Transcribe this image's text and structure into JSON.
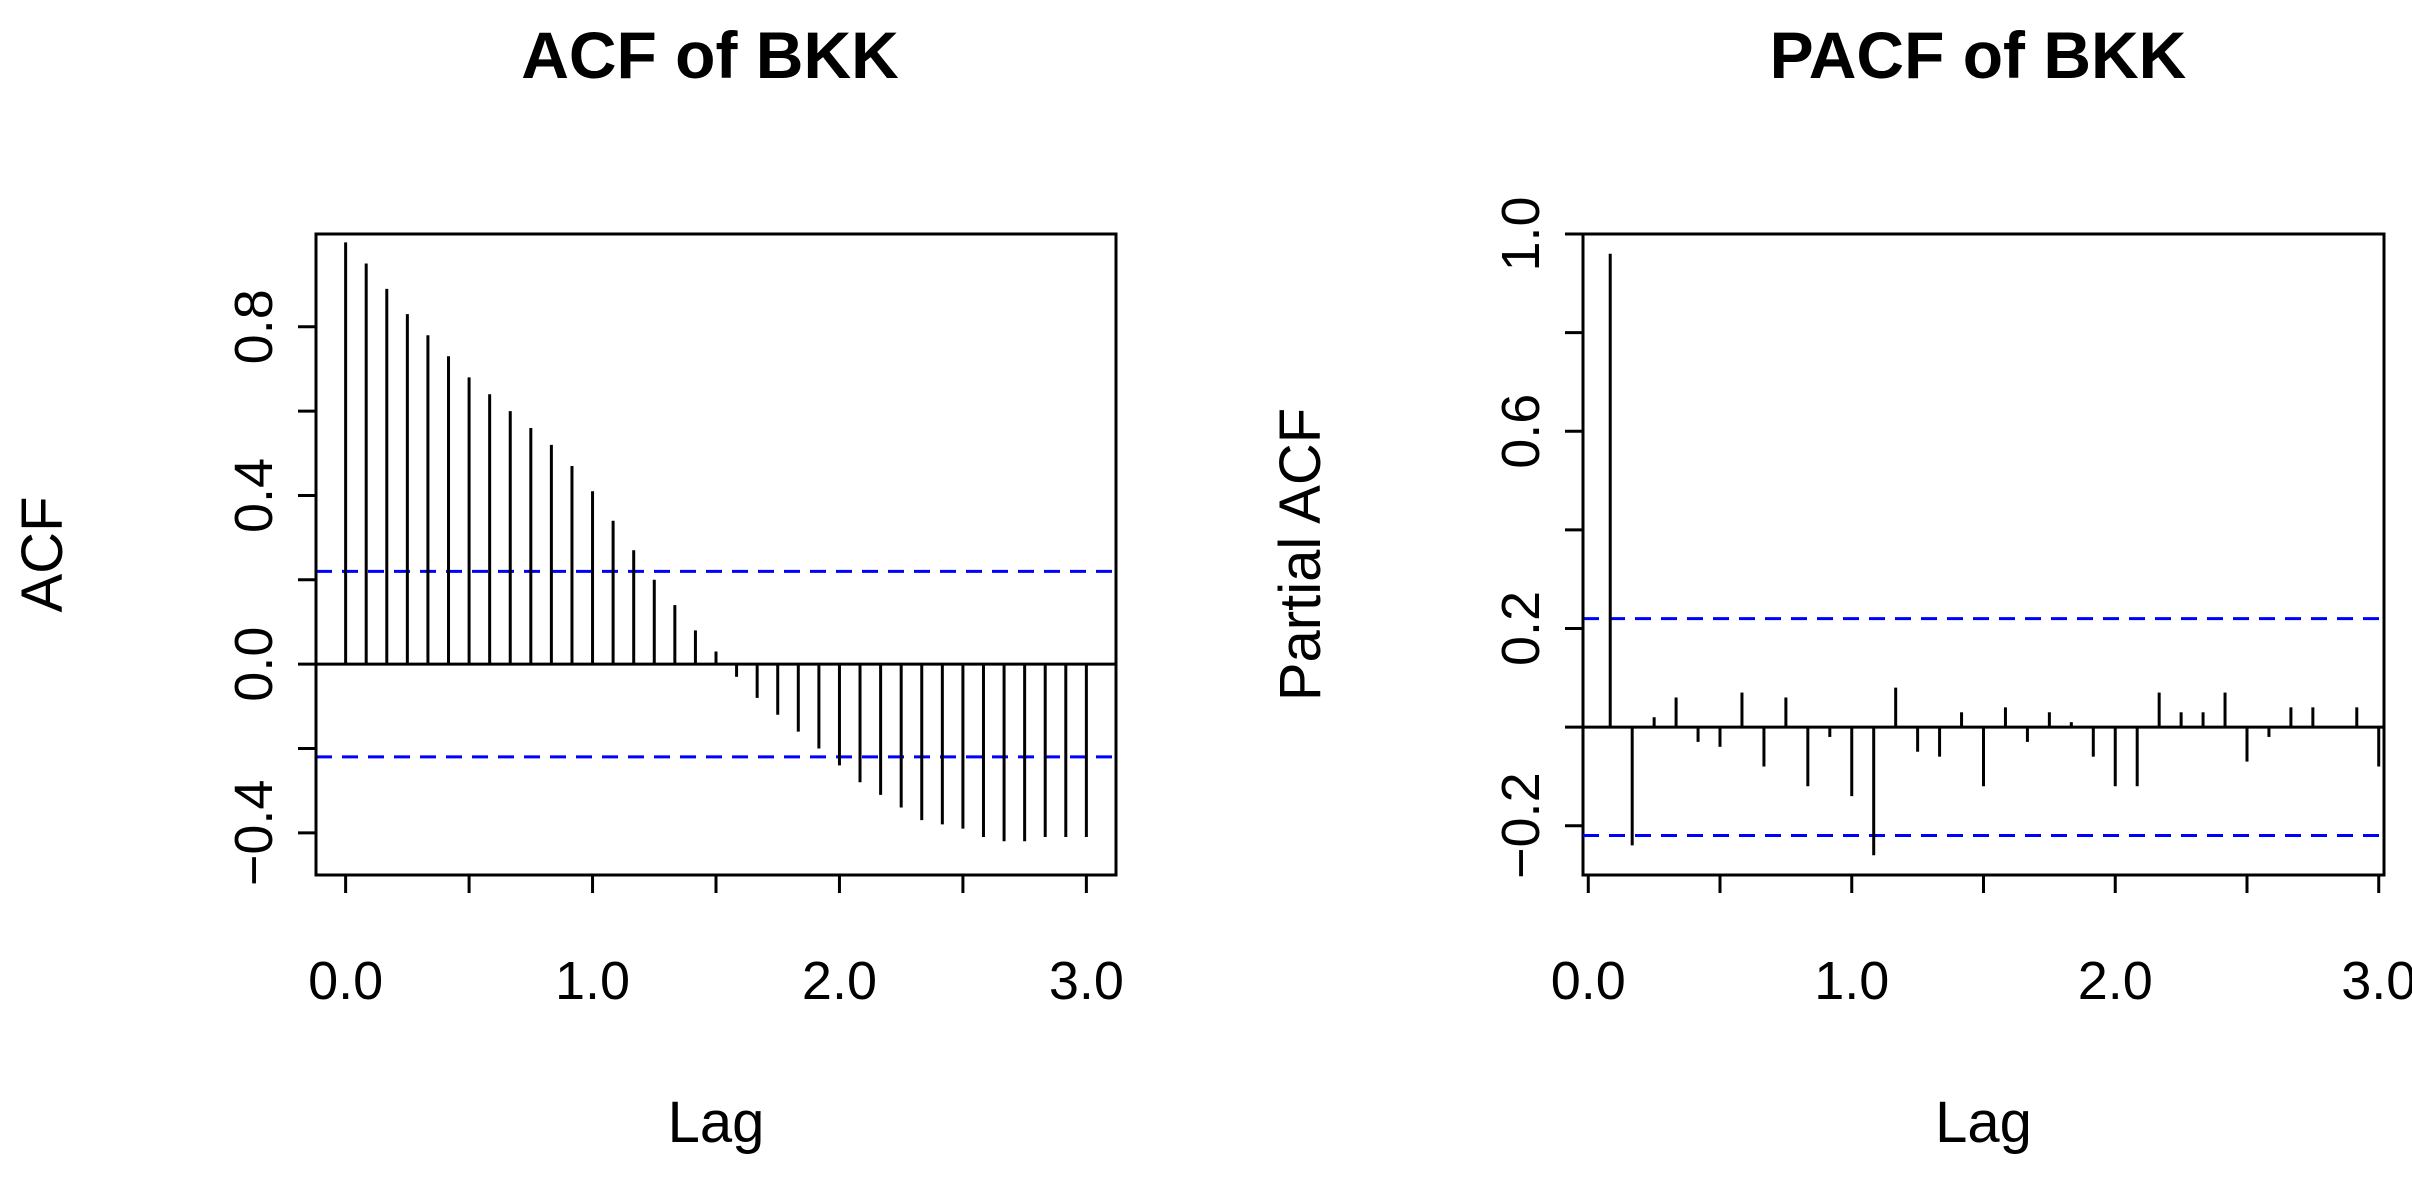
{
  "chart_data": [
    {
      "type": "bar",
      "title": "ACF of BKK",
      "xlabel": "Lag",
      "ylabel": "ACF",
      "xlim": [
        -0.12,
        3.12
      ],
      "ylim": [
        -0.5,
        1.02
      ],
      "x_ticks": [
        0.0,
        0.5,
        1.0,
        1.5,
        2.0,
        2.5,
        3.0
      ],
      "x_tick_labels": [
        "0.0",
        "",
        "1.0",
        "",
        "2.0",
        "",
        "3.0"
      ],
      "y_ticks": [
        -0.4,
        -0.2,
        0.0,
        0.2,
        0.4,
        0.6,
        0.8
      ],
      "y_tick_labels": [
        "−0.4",
        "",
        "0.0",
        "",
        "0.4",
        "",
        "0.8"
      ],
      "ci": 0.22,
      "colors": {
        "bars": "#000000",
        "ci": "#0000ff"
      },
      "x": [
        0.0,
        0.0833,
        0.1667,
        0.25,
        0.3333,
        0.4167,
        0.5,
        0.5833,
        0.6667,
        0.75,
        0.8333,
        0.9167,
        1.0,
        1.0833,
        1.1667,
        1.25,
        1.3333,
        1.4167,
        1.5,
        1.5833,
        1.6667,
        1.75,
        1.8333,
        1.9167,
        2.0,
        2.0833,
        2.1667,
        2.25,
        2.3333,
        2.4167,
        2.5,
        2.5833,
        2.6667,
        2.75,
        2.8333,
        2.9167,
        3.0
      ],
      "values": [
        1.0,
        0.95,
        0.89,
        0.83,
        0.78,
        0.73,
        0.68,
        0.64,
        0.6,
        0.56,
        0.52,
        0.47,
        0.41,
        0.34,
        0.27,
        0.2,
        0.14,
        0.08,
        0.03,
        -0.03,
        -0.08,
        -0.12,
        -0.16,
        -0.2,
        -0.24,
        -0.28,
        -0.31,
        -0.34,
        -0.37,
        -0.38,
        -0.39,
        -0.41,
        -0.42,
        -0.42,
        -0.41,
        -0.41,
        -0.41
      ]
    },
    {
      "type": "bar",
      "title": "PACF of BKK",
      "xlabel": "Lag",
      "ylabel": "Partial ACF",
      "xlim": [
        -0.02,
        3.02
      ],
      "ylim": [
        -0.3,
        1.0
      ],
      "x_ticks": [
        0.0,
        0.5,
        1.0,
        1.5,
        2.0,
        2.5,
        3.0
      ],
      "x_tick_labels": [
        "0.0",
        "",
        "1.0",
        "",
        "2.0",
        "",
        "3.0"
      ],
      "y_ticks": [
        -0.2,
        0.0,
        0.2,
        0.4,
        0.6,
        0.8,
        1.0
      ],
      "y_tick_labels": [
        "−0.2",
        "",
        "0.2",
        "",
        "0.6",
        "",
        "1.0"
      ],
      "ci": 0.22,
      "colors": {
        "bars": "#000000",
        "ci": "#0000ff"
      },
      "x": [
        0.0833,
        0.1667,
        0.25,
        0.3333,
        0.4167,
        0.5,
        0.5833,
        0.6667,
        0.75,
        0.8333,
        0.9167,
        1.0,
        1.0833,
        1.1667,
        1.25,
        1.3333,
        1.4167,
        1.5,
        1.5833,
        1.6667,
        1.75,
        1.8333,
        1.9167,
        2.0,
        2.0833,
        2.1667,
        2.25,
        2.3333,
        2.4167,
        2.5,
        2.5833,
        2.6667,
        2.75,
        2.8333,
        2.9167,
        3.0
      ],
      "values": [
        0.96,
        -0.24,
        0.02,
        0.06,
        -0.03,
        -0.04,
        0.07,
        -0.08,
        0.06,
        -0.12,
        -0.02,
        -0.14,
        -0.26,
        0.08,
        -0.05,
        -0.06,
        0.03,
        -0.12,
        0.04,
        -0.03,
        0.03,
        0.01,
        -0.06,
        -0.12,
        -0.12,
        0.07,
        0.03,
        0.03,
        0.07,
        -0.07,
        -0.02,
        0.04,
        0.04,
        0.0,
        0.04,
        -0.08
      ]
    }
  ]
}
